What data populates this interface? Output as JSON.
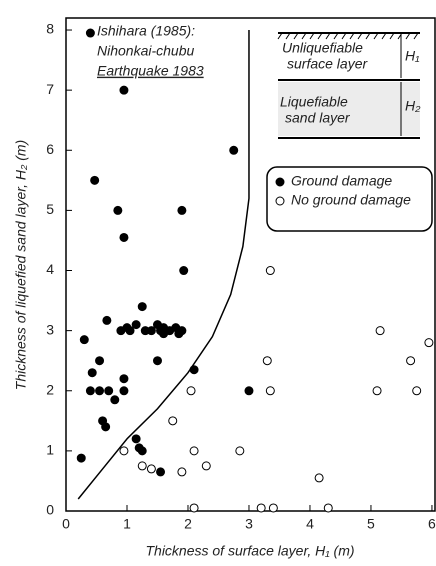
{
  "chart_data": {
    "type": "scatter",
    "xlabel": "Thickness of surface layer, H₁ (m)",
    "ylabel": "Thickness of liquefied sand layer, H₂ (m)",
    "annotation": [
      "Ishihara (1985):",
      "Nihonkai-chubu",
      "Earthquake 1983"
    ],
    "inset": {
      "top_layer": [
        "Unliquefiable",
        "surface layer"
      ],
      "bottom_layer": [
        "Liquefiable",
        "sand layer"
      ],
      "h1": "H₁",
      "h2": "H₂"
    },
    "xlim": [
      0,
      6.05
    ],
    "ylim": [
      0,
      8.2
    ],
    "xticks": [
      0,
      1,
      2,
      3,
      4,
      5,
      6
    ],
    "yticks": [
      0,
      1,
      2,
      3,
      4,
      5,
      6,
      7,
      8
    ],
    "series": [
      {
        "name": "Ground damage",
        "color": "#000000",
        "filled": true,
        "x": [
          0.4,
          0.95,
          0.47,
          0.85,
          0.95,
          1.9,
          1.93,
          2.75,
          0.3,
          1.25,
          0.67,
          0.9,
          1.0,
          1.05,
          1.15,
          1.3,
          1.4,
          1.55,
          1.6,
          1.7,
          1.8,
          1.9,
          1.5,
          1.6,
          1.85,
          1.5,
          0.43,
          0.55,
          0.4,
          0.55,
          0.7,
          0.95,
          0.95,
          0.8,
          0.6,
          0.65,
          2.1,
          3.0,
          1.15,
          1.2,
          1.25,
          1.55,
          0.25
        ],
        "values": [
          7.95,
          7.0,
          5.5,
          5.0,
          4.55,
          5.0,
          4.0,
          6.0,
          2.85,
          3.4,
          3.17,
          3.0,
          3.05,
          3.0,
          3.1,
          3.0,
          3.0,
          3.0,
          3.05,
          3.0,
          3.05,
          3.0,
          3.1,
          2.95,
          2.95,
          2.5,
          2.3,
          2.5,
          2.0,
          2.0,
          2.0,
          2.2,
          2.0,
          1.85,
          1.5,
          1.4,
          2.35,
          2.0,
          1.2,
          1.05,
          1.0,
          0.65,
          0.88
        ]
      },
      {
        "name": "No ground damage",
        "color": "#000000",
        "filled": false,
        "x": [
          0.95,
          1.25,
          1.4,
          1.75,
          1.9,
          2.05,
          2.1,
          2.3,
          2.1,
          2.85,
          3.2,
          3.4,
          3.35,
          3.3,
          3.35,
          4.15,
          4.3,
          5.15,
          5.1,
          5.65,
          5.75,
          5.95
        ],
        "values": [
          1.0,
          0.75,
          0.7,
          1.5,
          0.65,
          2.0,
          1.0,
          0.75,
          0.05,
          1.0,
          0.05,
          0.05,
          4.0,
          2.5,
          2.0,
          0.55,
          0.05,
          3.0,
          2.0,
          2.5,
          2.0,
          2.8
        ]
      }
    ],
    "boundary": {
      "x": [
        0.2,
        0.6,
        1.0,
        1.5,
        2.0,
        2.4,
        2.7,
        2.9,
        3.0,
        3.0
      ],
      "y": [
        0.2,
        0.7,
        1.2,
        1.7,
        2.3,
        2.9,
        3.6,
        4.4,
        5.2,
        8.0
      ]
    }
  }
}
